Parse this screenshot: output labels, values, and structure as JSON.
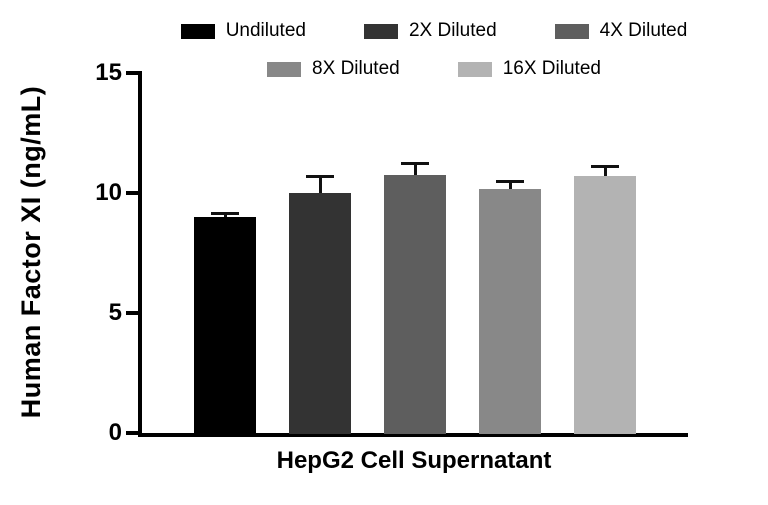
{
  "chart_data": {
    "type": "bar",
    "title": "",
    "xlabel": "HepG2 Cell Supernatant",
    "ylabel": "Human Factor XI (ng/mL)",
    "ylim": [
      0,
      15
    ],
    "yticks": [
      0,
      5,
      10,
      15
    ],
    "categories": [
      "Undiluted",
      "2X Diluted",
      "4X Diluted",
      "8X Diluted",
      "16X Diluted"
    ],
    "values": [
      9.0,
      10.0,
      10.75,
      10.15,
      10.7
    ],
    "errors": [
      0.15,
      0.7,
      0.5,
      0.35,
      0.4
    ],
    "colors": [
      "#000000",
      "#333333",
      "#5e5e5e",
      "#888888",
      "#b3b3b3"
    ],
    "error_color": "#111111",
    "legend_rows": [
      [
        "Undiluted",
        "2X Diluted",
        "4X Diluted"
      ],
      [
        "8X Diluted",
        "16X Diluted"
      ]
    ],
    "legend_position": "top",
    "grid": false
  }
}
